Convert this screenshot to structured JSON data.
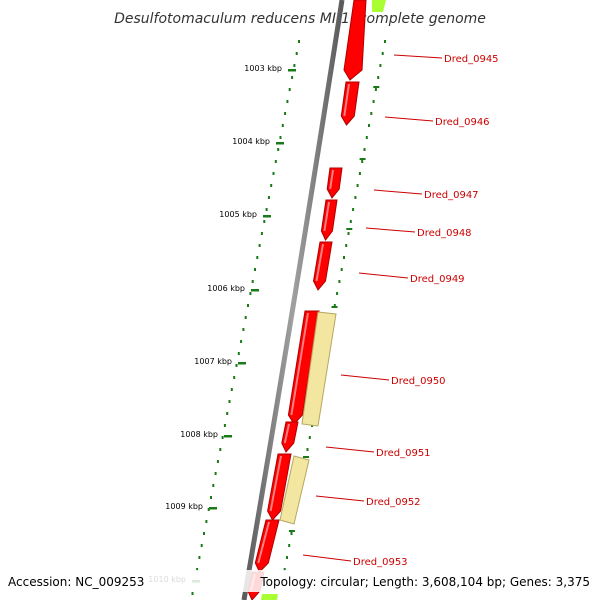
{
  "title": "Desulfotomaculum reducens MI-1, complete genome",
  "footer": {
    "accession": "Accession: NC_009253",
    "summary": "Topology: circular; Length: 3,608,104 bp; Genes: 3,375"
  },
  "colors": {
    "backbone": "#808080",
    "gene_fill": "#ff0000",
    "gene_highlight": "#ff8080",
    "gene_shadow": "#b00000",
    "pseudo_fill": "#f2e6a0",
    "pseudo_shadow": "#b5a860",
    "green_feature": "#aaff33",
    "tick": "#1a7a1a",
    "gene_label": "#cc0000"
  },
  "scale_ticks": [
    {
      "label": "1003 kbp"
    },
    {
      "label": "1004 kbp"
    },
    {
      "label": "1005 kbp"
    },
    {
      "label": "1006 kbp"
    },
    {
      "label": "1007 kbp"
    },
    {
      "label": "1008 kbp"
    },
    {
      "label": "1009 kbp"
    },
    {
      "label": "1010 kbp"
    }
  ],
  "genes": [
    {
      "label": "Dred_0945"
    },
    {
      "label": "Dred_0946"
    },
    {
      "label": "Dred_0947"
    },
    {
      "label": "Dred_0948"
    },
    {
      "label": "Dred_0949"
    },
    {
      "label": "Dred_0950"
    },
    {
      "label": "Dred_0951"
    },
    {
      "label": "Dred_0952"
    },
    {
      "label": "Dred_0953"
    }
  ]
}
